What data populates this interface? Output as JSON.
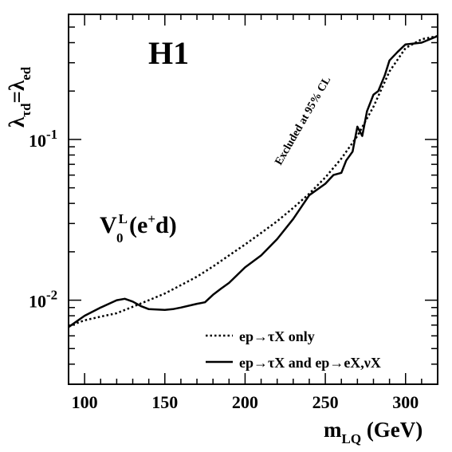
{
  "chart_data": {
    "type": "line",
    "experiment_label": "H1",
    "panel_label": {
      "base": "V",
      "sub": "0",
      "sup": "L",
      "tail_open": " (e",
      "tail_sup": "+",
      "tail_close": "d)"
    },
    "annotation": "Excluded at 95% CL",
    "xlabel": {
      "main": "m",
      "sub": "LQ",
      "unit": " (GeV)"
    },
    "ylabel": {
      "l1": "λ",
      "s1": "τd",
      "eq": "=λ",
      "s2": "ed"
    },
    "xlim": [
      90,
      320
    ],
    "ylim": [
      0.003,
      0.6
    ],
    "log_y": true,
    "x_ticks": [
      "100",
      "150",
      "200",
      "250",
      "300"
    ],
    "y_ticks": [
      {
        "base": "10",
        "exp": "-2",
        "value": 0.01
      },
      {
        "base": "10",
        "exp": "-1",
        "value": 0.1
      }
    ],
    "legend_position": "bottom-right",
    "series": [
      {
        "name": "ep→τX only",
        "style": "dotted",
        "x": [
          90,
          100,
          110,
          120,
          130,
          140,
          150,
          160,
          170,
          180,
          190,
          200,
          210,
          220,
          230,
          240,
          250,
          260,
          270,
          280,
          290,
          300,
          310,
          320
        ],
        "y": [
          0.0069,
          0.0075,
          0.0079,
          0.0083,
          0.0091,
          0.01,
          0.011,
          0.0124,
          0.014,
          0.0162,
          0.019,
          0.0222,
          0.0262,
          0.031,
          0.0375,
          0.046,
          0.058,
          0.076,
          0.105,
          0.16,
          0.265,
          0.37,
          0.42,
          0.44
        ]
      },
      {
        "name": "ep→τX and ep→eX,νX",
        "style": "solid",
        "x": [
          90,
          100,
          110,
          120,
          125,
          130,
          135,
          140,
          150,
          155,
          160,
          170,
          175,
          180,
          185,
          190,
          200,
          210,
          220,
          230,
          240,
          250,
          255,
          260,
          263,
          267,
          270,
          273,
          276,
          280,
          283,
          287,
          290,
          295,
          300,
          310,
          320
        ],
        "y": [
          0.0068,
          0.008,
          0.009,
          0.01,
          0.0102,
          0.0098,
          0.0092,
          0.0088,
          0.0087,
          0.0088,
          0.009,
          0.0095,
          0.0097,
          0.0108,
          0.0118,
          0.0128,
          0.016,
          0.019,
          0.024,
          0.032,
          0.045,
          0.053,
          0.06,
          0.062,
          0.074,
          0.084,
          0.12,
          0.105,
          0.15,
          0.19,
          0.2,
          0.25,
          0.31,
          0.35,
          0.39,
          0.4,
          0.44
        ]
      }
    ]
  }
}
